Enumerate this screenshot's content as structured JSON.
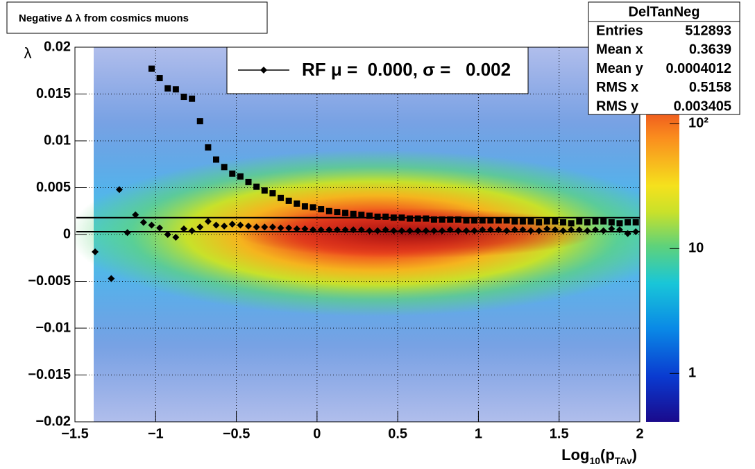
{
  "chart_data": {
    "type": "scatter",
    "title": "Negative Δ λ from cosmics muons",
    "xlabel": [
      "Log",
      "10",
      "(p",
      "TAv",
      ")"
    ],
    "ylabel": "λ",
    "xlim": [
      -1.5,
      2
    ],
    "ylim": [
      -0.02,
      0.02
    ],
    "xticks": [
      {
        "value": -1.5,
        "label": "−1.5"
      },
      {
        "value": -1,
        "label": "−1"
      },
      {
        "value": -0.5,
        "label": "−0.5"
      },
      0,
      0.5,
      1,
      1.5,
      2
    ],
    "yticks": [
      {
        "value": -0.02,
        "label": "−0.02"
      },
      {
        "value": -0.015,
        "label": "−0.015"
      },
      {
        "value": -0.01,
        "label": "−0.01"
      },
      {
        "value": -0.005,
        "label": "−0.005"
      },
      0,
      0.005,
      0.01,
      0.015,
      0.02
    ],
    "grid": true,
    "zlog": true,
    "zlim": [
      0.41,
      410
    ],
    "zticks": [
      1,
      10,
      {
        "value": 100,
        "label": "10²"
      }
    ],
    "hlines": [
      0.0018,
      0.0003
    ],
    "legend": "top",
    "series": [
      {
        "name": "RF μ =  0.000, σ =   0.002",
        "color": "#000000",
        "marker": "diamond",
        "x": [
          -1.375,
          -1.275,
          -1.225,
          -1.175,
          -1.125,
          -1.075,
          -1.025,
          -0.975,
          -0.925,
          -0.875,
          -0.825,
          -0.775,
          -0.725,
          -0.675,
          -0.625,
          -0.575,
          -0.525,
          -0.475,
          -0.425,
          -0.375,
          -0.325,
          -0.275,
          -0.225,
          -0.175,
          -0.125,
          -0.075,
          -0.025,
          0.025,
          0.075,
          0.125,
          0.175,
          0.225,
          0.275,
          0.325,
          0.375,
          0.425,
          0.475,
          0.525,
          0.575,
          0.625,
          0.675,
          0.725,
          0.775,
          0.825,
          0.875,
          0.925,
          0.975,
          1.025,
          1.075,
          1.125,
          1.175,
          1.225,
          1.275,
          1.325,
          1.375,
          1.425,
          1.475,
          1.525,
          1.575,
          1.625,
          1.675,
          1.725,
          1.775,
          1.825,
          1.875,
          1.925,
          1.975
        ],
        "values": [
          -0.00185,
          -0.0047,
          0.0048,
          0.0002,
          0.0021,
          0.0013,
          0.001,
          0.0007,
          0,
          -0.0003,
          0.0006,
          0.0004,
          0.0008,
          0.0014,
          0.001,
          0.0009,
          0.0011,
          0.001,
          0.0009,
          0.0008,
          0.0008,
          0.0008,
          0.0007,
          0.0007,
          0.0006,
          0.0006,
          0.0005,
          0.0005,
          0.0005,
          0.0005,
          0.0005,
          0.0005,
          0.0005,
          0.0004,
          0.0004,
          0.0005,
          0.0004,
          0.0004,
          0.0004,
          0.0004,
          0.0004,
          0.0004,
          0.0004,
          0.0005,
          0.0004,
          0.0004,
          0.0004,
          0.0005,
          0.0005,
          0.0005,
          0.0004,
          0.0005,
          0.0005,
          0.0004,
          0.0004,
          0.0006,
          0.0005,
          0.0004,
          0.0005,
          0.0005,
          0.0004,
          0.0005,
          0.0004,
          0.0006,
          0.0005,
          0.0001,
          0.0003
        ]
      },
      {
        "color": "#000000",
        "marker": "square",
        "x": [
          -1.025,
          -0.975,
          -0.925,
          -0.875,
          -0.825,
          -0.775,
          -0.725,
          -0.675,
          -0.625,
          -0.575,
          -0.525,
          -0.475,
          -0.425,
          -0.375,
          -0.325,
          -0.275,
          -0.225,
          -0.175,
          -0.125,
          -0.075,
          -0.025,
          0.025,
          0.075,
          0.125,
          0.175,
          0.225,
          0.275,
          0.325,
          0.375,
          0.425,
          0.475,
          0.525,
          0.575,
          0.625,
          0.675,
          0.725,
          0.775,
          0.825,
          0.875,
          0.925,
          0.975,
          1.025,
          1.075,
          1.125,
          1.175,
          1.225,
          1.275,
          1.325,
          1.375,
          1.425,
          1.475,
          1.525,
          1.575,
          1.625,
          1.675,
          1.725,
          1.775,
          1.825,
          1.875,
          1.925,
          1.975
        ],
        "values": [
          0.0177,
          0.0167,
          0.0156,
          0.0155,
          0.0147,
          0.0145,
          0.0121,
          0.0093,
          0.008,
          0.0072,
          0.0065,
          0.0062,
          0.0056,
          0.0051,
          0.0047,
          0.0044,
          0.0039,
          0.0036,
          0.0033,
          0.003,
          0.0029,
          0.0027,
          0.0025,
          0.0024,
          0.0023,
          0.0022,
          0.0021,
          0.002,
          0.0019,
          0.0019,
          0.0018,
          0.0018,
          0.0017,
          0.0017,
          0.0017,
          0.0016,
          0.0016,
          0.0016,
          0.0016,
          0.0015,
          0.0015,
          0.0015,
          0.0015,
          0.0015,
          0.0015,
          0.0014,
          0.0014,
          0.0014,
          0.0013,
          0.0014,
          0.0014,
          0.0013,
          0.0012,
          0.0014,
          0.0013,
          0.0014,
          0.0014,
          0.0013,
          0.0012,
          0.0013,
          0.0013
        ]
      }
    ],
    "stats": {
      "title": "DelTanNeg",
      "rows": [
        {
          "label": "Entries",
          "value": 512893
        },
        {
          "label": "Mean x",
          "value": 0.3639
        },
        {
          "label": "Mean y",
          "value": 0.0004012
        },
        {
          "label": "RMS x",
          "value": 0.5158
        },
        {
          "label": "RMS y",
          "value": 0.003405
        }
      ]
    }
  }
}
